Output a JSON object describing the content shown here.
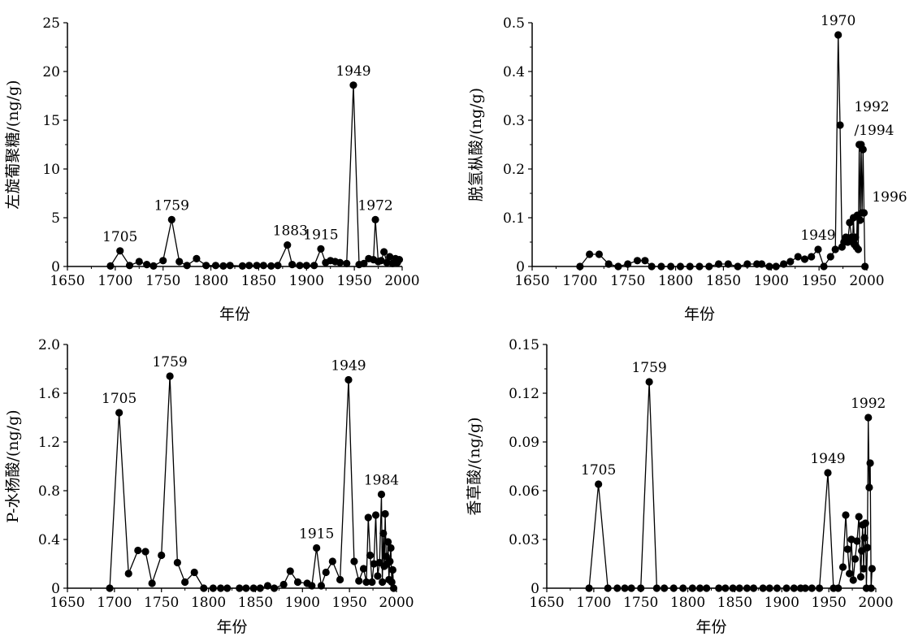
{
  "chart_data": [
    {
      "type": "line",
      "xlabel": "年份",
      "ylabel": "左旋葡聚糖/(ng/g)",
      "xlim": [
        1650,
        2000
      ],
      "ylim": [
        0,
        25
      ],
      "xticks": [
        "1650",
        "1700",
        "1750",
        "1800",
        "1850",
        "1900",
        "1950",
        "2000"
      ],
      "yticks": [
        "0",
        "5",
        "10",
        "15",
        "20",
        "25"
      ],
      "annotations": [
        {
          "text": "1705",
          "x": 1705,
          "y": 1.6
        },
        {
          "text": "1759",
          "x": 1759,
          "y": 4.8
        },
        {
          "text": "1883",
          "x": 1883,
          "y": 2.2
        },
        {
          "text": "1915",
          "x": 1915,
          "y": 1.8
        },
        {
          "text": "1949",
          "x": 1949,
          "y": 18.6
        },
        {
          "text": "1972",
          "x": 1972,
          "y": 4.8
        }
      ],
      "series": [
        {
          "x": [
            1695,
            1705,
            1715,
            1725,
            1733,
            1740,
            1750,
            1759,
            1767,
            1775,
            1785,
            1795,
            1805,
            1813,
            1820,
            1833,
            1840,
            1848,
            1855,
            1863,
            1870,
            1880,
            1885,
            1893,
            1900,
            1908,
            1915,
            1920,
            1925,
            1930,
            1935,
            1942,
            1949,
            1955,
            1960,
            1965,
            1970,
            1972,
            1975,
            1978,
            1981,
            1984,
            1987,
            1990,
            1993,
            1995,
            1997
          ],
          "y": [
            0.05,
            1.6,
            0.1,
            0.5,
            0.2,
            0.05,
            0.6,
            4.8,
            0.5,
            0.1,
            0.8,
            0.1,
            0.1,
            0.05,
            0.1,
            0.05,
            0.1,
            0.1,
            0.1,
            0.05,
            0.1,
            2.2,
            0.2,
            0.1,
            0.1,
            0.1,
            1.8,
            0.4,
            0.6,
            0.5,
            0.4,
            0.3,
            18.6,
            0.2,
            0.3,
            0.8,
            0.7,
            4.8,
            0.5,
            0.6,
            1.5,
            0.4,
            1.0,
            0.3,
            0.8,
            0.4,
            0.7
          ]
        }
      ]
    },
    {
      "type": "line",
      "xlabel": "年份",
      "ylabel": "脱氢枞酸/(ng/g)",
      "xlim": [
        1650,
        2000
      ],
      "ylim": [
        0,
        0.5
      ],
      "xticks": [
        "1650",
        "1700",
        "1750",
        "1800",
        "1850",
        "1900",
        "1950",
        "2000"
      ],
      "yticks": [
        "0",
        "0.1",
        "0.2",
        "0.3",
        "0.4",
        "0.5"
      ],
      "annotations": [
        {
          "text": "1970",
          "x": 1970,
          "y": 0.475
        },
        {
          "text": "1992",
          "x": 1992,
          "y": 0.25,
          "line": 1
        },
        {
          "text": "/1994",
          "x": 1992,
          "y": 0.25,
          "line": 2
        },
        {
          "text": "1996",
          "x": 1996,
          "y": 0.11
        },
        {
          "text": "1949",
          "x": 1949,
          "y": 0.035
        }
      ],
      "series": [
        {
          "x": [
            1700,
            1710,
            1720,
            1730,
            1740,
            1750,
            1760,
            1768,
            1775,
            1785,
            1795,
            1805,
            1815,
            1825,
            1835,
            1845,
            1855,
            1865,
            1875,
            1885,
            1890,
            1898,
            1905,
            1913,
            1920,
            1928,
            1935,
            1942,
            1949,
            1955,
            1962,
            1967,
            1970,
            1972,
            1974,
            1976,
            1978,
            1980,
            1982,
            1984,
            1985,
            1986,
            1987,
            1988,
            1989,
            1990,
            1991,
            1992,
            1993,
            1994,
            1995,
            1996,
            1997,
            1998
          ],
          "y": [
            0.0,
            0.025,
            0.025,
            0.005,
            0.0,
            0.005,
            0.012,
            0.012,
            0.0,
            0.0,
            0.0,
            0.0,
            0.0,
            0.0,
            0.0,
            0.005,
            0.005,
            0.0,
            0.005,
            0.005,
            0.005,
            0.0,
            0.0,
            0.005,
            0.01,
            0.02,
            0.015,
            0.02,
            0.035,
            0.0,
            0.02,
            0.035,
            0.475,
            0.29,
            0.04,
            0.05,
            0.06,
            0.05,
            0.09,
            0.06,
            0.05,
            0.1,
            0.045,
            0.06,
            0.04,
            0.105,
            0.035,
            0.25,
            0.095,
            0.25,
            0.11,
            0.24,
            0.11,
            0.0
          ]
        }
      ]
    },
    {
      "type": "line",
      "xlabel": "年份",
      "ylabel": "P-水杨酸/(ng/g)",
      "xlim": [
        1650,
        2000
      ],
      "ylim": [
        0,
        2.0
      ],
      "xticks": [
        "1650",
        "1700",
        "1750",
        "1800",
        "1850",
        "1900",
        "1950",
        "2000"
      ],
      "yticks": [
        "0",
        "0.4",
        "0.8",
        "1.2",
        "1.6",
        "2.0"
      ],
      "annotations": [
        {
          "text": "1705",
          "x": 1705,
          "y": 1.44
        },
        {
          "text": "1759",
          "x": 1759,
          "y": 1.74
        },
        {
          "text": "1915",
          "x": 1915,
          "y": 0.33
        },
        {
          "text": "1949",
          "x": 1949,
          "y": 1.71
        },
        {
          "text": "1984",
          "x": 1984,
          "y": 0.77
        }
      ],
      "series": [
        {
          "x": [
            1695,
            1705,
            1715,
            1725,
            1733,
            1740,
            1750,
            1759,
            1767,
            1775,
            1785,
            1795,
            1805,
            1813,
            1820,
            1833,
            1840,
            1848,
            1855,
            1863,
            1870,
            1880,
            1887,
            1895,
            1905,
            1910,
            1915,
            1920,
            1925,
            1932,
            1940,
            1949,
            1955,
            1960,
            1965,
            1968,
            1970,
            1972,
            1974,
            1976,
            1978,
            1980,
            1982,
            1984,
            1985,
            1986,
            1987,
            1988,
            1989,
            1990,
            1991,
            1992,
            1993,
            1994,
            1995,
            1996,
            1997
          ],
          "y": [
            0.0,
            1.44,
            0.12,
            0.31,
            0.3,
            0.04,
            0.27,
            1.74,
            0.21,
            0.05,
            0.13,
            0.0,
            0.0,
            0.0,
            0.0,
            0.0,
            0.0,
            0.0,
            0.0,
            0.02,
            0.0,
            0.03,
            0.14,
            0.05,
            0.04,
            0.02,
            0.33,
            0.02,
            0.13,
            0.22,
            0.07,
            1.71,
            0.22,
            0.06,
            0.16,
            0.05,
            0.58,
            0.27,
            0.05,
            0.2,
            0.6,
            0.1,
            0.21,
            0.77,
            0.05,
            0.45,
            0.18,
            0.61,
            0.26,
            0.2,
            0.38,
            0.07,
            0.22,
            0.33,
            0.05,
            0.15,
            0.0
          ]
        }
      ]
    },
    {
      "type": "line",
      "xlabel": "年份",
      "ylabel": "香草酸/(ng/g)",
      "xlim": [
        1650,
        2000
      ],
      "ylim": [
        0,
        0.15
      ],
      "xticks": [
        "1650",
        "1700",
        "1750",
        "1800",
        "1850",
        "1900",
        "1950",
        "2000"
      ],
      "yticks": [
        "0",
        "0.03",
        "0.06",
        "0.09",
        "0.12",
        "0.15"
      ],
      "annotations": [
        {
          "text": "1705",
          "x": 1705,
          "y": 0.064
        },
        {
          "text": "1759",
          "x": 1759,
          "y": 0.127
        },
        {
          "text": "1949",
          "x": 1949,
          "y": 0.071
        },
        {
          "text": "1992",
          "x": 1992,
          "y": 0.105
        }
      ],
      "series": [
        {
          "x": [
            1695,
            1705,
            1715,
            1725,
            1733,
            1740,
            1750,
            1759,
            1767,
            1775,
            1785,
            1795,
            1805,
            1813,
            1820,
            1833,
            1840,
            1848,
            1855,
            1863,
            1870,
            1880,
            1887,
            1895,
            1905,
            1913,
            1920,
            1925,
            1932,
            1940,
            1949,
            1955,
            1960,
            1965,
            1968,
            1970,
            1972,
            1974,
            1976,
            1978,
            1980,
            1982,
            1984,
            1985,
            1986,
            1987,
            1988,
            1989,
            1990,
            1991,
            1992,
            1993,
            1994,
            1995,
            1996
          ],
          "y": [
            0.0,
            0.064,
            0.0,
            0.0,
            0.0,
            0.0,
            0.0,
            0.127,
            0.0,
            0.0,
            0.0,
            0.0,
            0.0,
            0.0,
            0.0,
            0.0,
            0.0,
            0.0,
            0.0,
            0.0,
            0.0,
            0.0,
            0.0,
            0.0,
            0.0,
            0.0,
            0.0,
            0.0,
            0.0,
            0.0,
            0.071,
            0.0,
            0.0,
            0.013,
            0.045,
            0.024,
            0.009,
            0.03,
            0.005,
            0.018,
            0.029,
            0.044,
            0.007,
            0.023,
            0.039,
            0.012,
            0.031,
            0.04,
            0.0,
            0.025,
            0.105,
            0.062,
            0.077,
            0.0,
            0.012
          ]
        }
      ]
    }
  ]
}
